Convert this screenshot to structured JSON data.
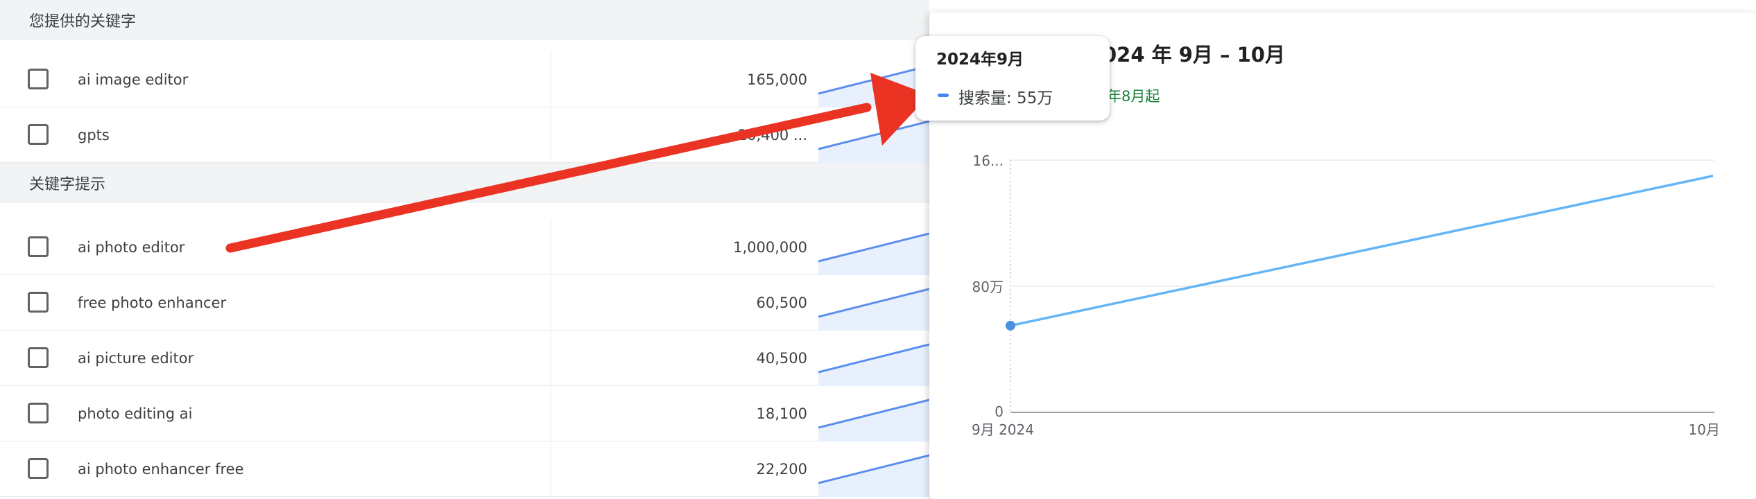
{
  "table": {
    "section_provided": "您提供的关键字",
    "section_suggestions": "关键字提示",
    "provided_rows": [
      {
        "keyword": "ai image editor",
        "volume": "165,000"
      },
      {
        "keyword": "gpts",
        "volume": "20,400 ..."
      }
    ],
    "suggestion_rows": [
      {
        "keyword": "ai photo editor",
        "volume": "1,000,000"
      },
      {
        "keyword": "free photo enhancer",
        "volume": "60,500"
      },
      {
        "keyword": "ai picture editor",
        "volume": "40,500"
      },
      {
        "keyword": "photo editing ai",
        "volume": "18,100"
      },
      {
        "keyword": "ai photo enhancer free",
        "volume": "22,200"
      }
    ]
  },
  "popup": {
    "title": "024 年 9月 – 10月",
    "subtitle": "年8月起"
  },
  "tooltip": {
    "title": "2024年9月",
    "series_label": "搜索量: 55万"
  },
  "colors": {
    "series": "#64b5f6",
    "sparkline": "#5b8def",
    "sparkline_fill": "#e8f0fe",
    "arrow": "#ea3323",
    "accent_green": "#188038"
  },
  "chart_data": {
    "type": "line",
    "x": [
      "9月 2024",
      "10月"
    ],
    "series": [
      {
        "name": "搜索量",
        "values": [
          550000,
          1500000
        ]
      }
    ],
    "ylim": [
      0,
      1600000
    ],
    "y_tick_labels": [
      "0",
      "80万",
      "16..."
    ],
    "x_tick_labels": [
      "9月 2024",
      "10月"
    ],
    "grid": true
  }
}
